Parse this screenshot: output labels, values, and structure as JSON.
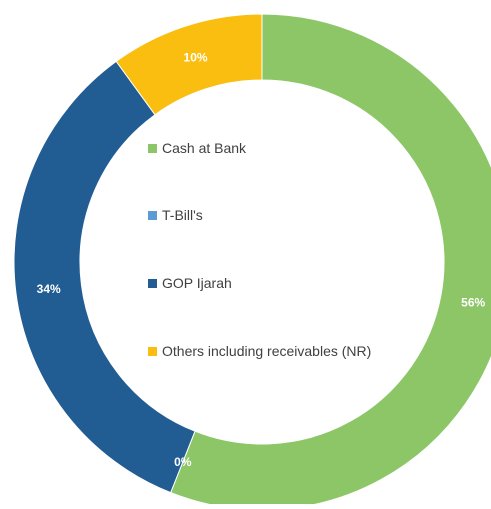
{
  "chart_data": {
    "type": "pie",
    "donut": true,
    "categories": [
      "Cash at Bank",
      "T-Bill's",
      "GOP Ijarah",
      "Others including receivables (NR)"
    ],
    "values": [
      56,
      0,
      34,
      10
    ],
    "data_labels": [
      "56%",
      "0%",
      "34%",
      "10%"
    ],
    "colors": [
      "#8dc667",
      "#5b9bd5",
      "#215d93",
      "#fabe10"
    ],
    "legend_position": "center"
  }
}
